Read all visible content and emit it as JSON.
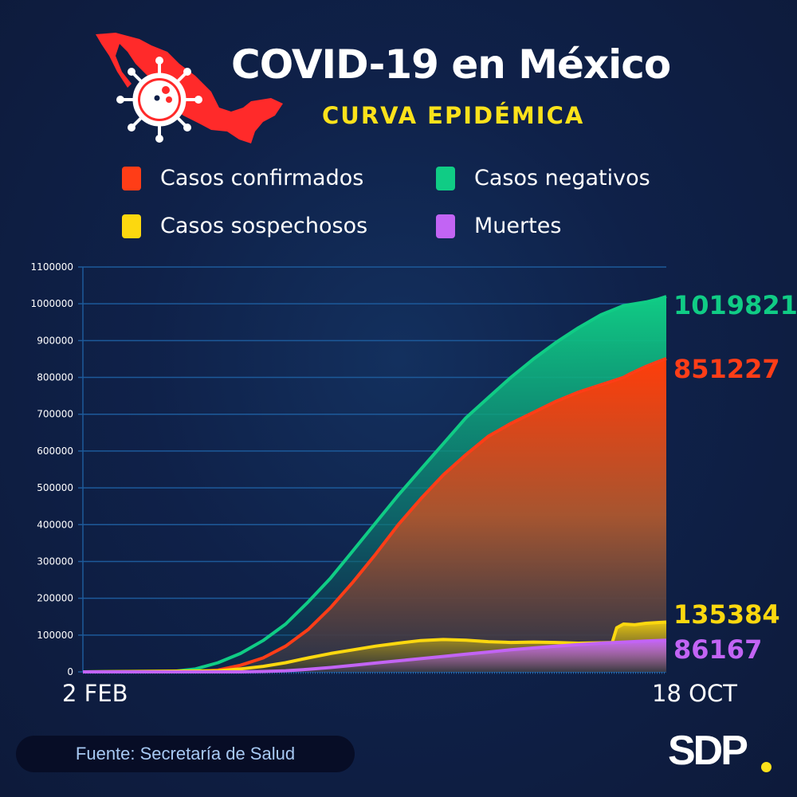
{
  "header": {
    "title": "COVID-19 en México",
    "subtitle": "CURVA EPIDÉMICA",
    "logo_icon": "mexico-map-virus-icon"
  },
  "legend": [
    {
      "label": "Casos confirmados",
      "color": "#ff3d17"
    },
    {
      "label": "Casos negativos",
      "color": "#10cc85"
    },
    {
      "label": "Casos sospechosos",
      "color": "#fcd80f"
    },
    {
      "label": "Muertes",
      "color": "#c264f4"
    }
  ],
  "chart_data": {
    "type": "area",
    "title": "COVID-19 en México - Curva epidémica",
    "xlabel": "",
    "ylabel": "",
    "ylim": [
      0,
      1100000
    ],
    "y_ticks": [
      "0",
      "100000",
      "200000",
      "300000",
      "400000",
      "500000",
      "600000",
      "700000",
      "800000",
      "900000",
      "1000000",
      "1100000"
    ],
    "x_tick_labels": [
      "2 FEB",
      "18 OCT"
    ],
    "x_range_days": [
      0,
      259
    ],
    "grid": true,
    "series": [
      {
        "name": "Casos negativos",
        "color": "#10cc85",
        "end_label": "1019821",
        "x": [
          0,
          40,
          50,
          60,
          70,
          80,
          90,
          100,
          110,
          120,
          130,
          140,
          150,
          160,
          170,
          180,
          190,
          200,
          210,
          220,
          230,
          240,
          250,
          255,
          259
        ],
        "values": [
          0,
          1000,
          8000,
          25000,
          50000,
          85000,
          130000,
          190000,
          255000,
          330000,
          405000,
          480000,
          550000,
          620000,
          690000,
          745000,
          800000,
          850000,
          895000,
          935000,
          970000,
          995000,
          1005000,
          1012000,
          1019821
        ]
      },
      {
        "name": "Casos confirmados",
        "color": "#ff3d17",
        "end_label": "851227",
        "x": [
          0,
          50,
          60,
          70,
          80,
          90,
          100,
          110,
          120,
          130,
          140,
          150,
          160,
          170,
          180,
          190,
          200,
          210,
          220,
          230,
          240,
          243,
          250,
          255,
          259
        ],
        "values": [
          0,
          500,
          5000,
          18000,
          38000,
          70000,
          115000,
          175000,
          245000,
          320000,
          400000,
          470000,
          535000,
          590000,
          640000,
          675000,
          705000,
          735000,
          760000,
          780000,
          800000,
          810000,
          830000,
          842000,
          851227
        ]
      },
      {
        "name": "Casos sospechosos",
        "color": "#fcd80f",
        "end_label": "135384",
        "x": [
          0,
          60,
          70,
          80,
          90,
          100,
          110,
          120,
          130,
          140,
          150,
          160,
          170,
          180,
          190,
          200,
          210,
          220,
          230,
          235,
          237,
          240,
          245,
          250,
          255,
          259
        ],
        "values": [
          0,
          3000,
          8000,
          15000,
          25000,
          38000,
          50000,
          60000,
          70000,
          78000,
          85000,
          88000,
          86000,
          82000,
          80000,
          81000,
          80000,
          78000,
          79000,
          80000,
          120000,
          130000,
          128000,
          132000,
          134000,
          135384
        ]
      },
      {
        "name": "Muertes",
        "color": "#c264f4",
        "end_label": "86167",
        "x": [
          0,
          70,
          80,
          90,
          100,
          110,
          120,
          130,
          140,
          150,
          160,
          170,
          180,
          190,
          200,
          210,
          220,
          230,
          240,
          250,
          259
        ],
        "values": [
          0,
          0,
          1000,
          3000,
          7000,
          12000,
          18000,
          24000,
          30000,
          36000,
          42000,
          48000,
          54000,
          60000,
          65000,
          70000,
          74000,
          78000,
          81000,
          84000,
          86167
        ]
      }
    ]
  },
  "footer": {
    "source": "Fuente: Secretaría de Salud",
    "brand": "SDP"
  }
}
